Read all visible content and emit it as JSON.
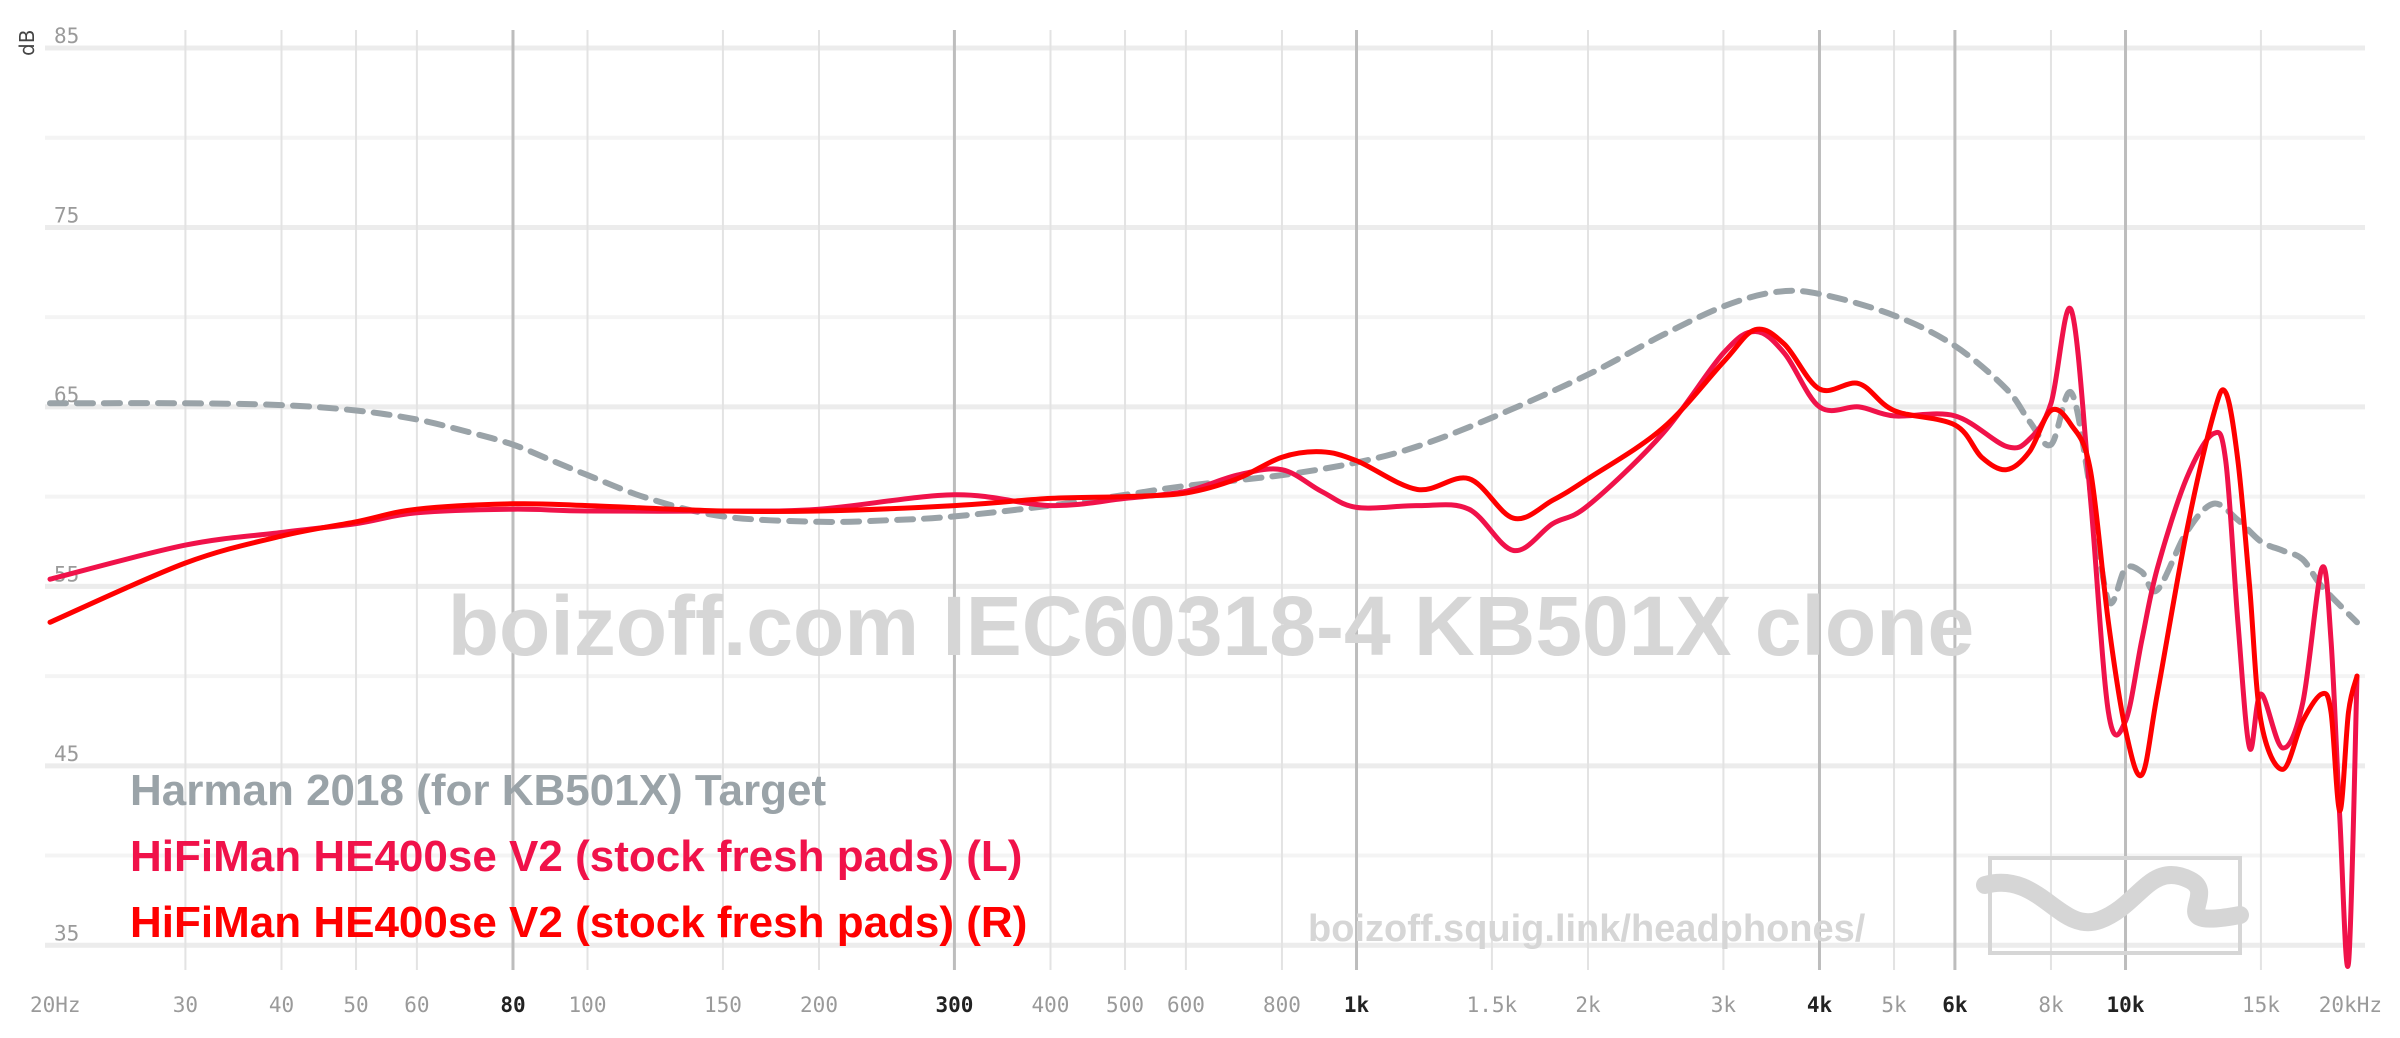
{
  "chart_data": {
    "type": "line",
    "title": "",
    "xlabel": "",
    "ylabel": "dB",
    "x_scale": "log",
    "xlim": [
      20,
      20000
    ],
    "ylim": [
      30,
      85
    ],
    "grid": true,
    "legend_placement": "bottom-left",
    "watermark": "boizoff.com IEC60318-4 KB501X clone",
    "url": "boizoff.squig.link/headphones/",
    "x_ticks": [
      {
        "v": 20,
        "label": "20Hz",
        "bold": false
      },
      {
        "v": 30,
        "label": "30",
        "bold": false
      },
      {
        "v": 40,
        "label": "40",
        "bold": false
      },
      {
        "v": 50,
        "label": "50",
        "bold": false
      },
      {
        "v": 60,
        "label": "60",
        "bold": false
      },
      {
        "v": 80,
        "label": "80",
        "bold": true
      },
      {
        "v": 100,
        "label": "100",
        "bold": false
      },
      {
        "v": 150,
        "label": "150",
        "bold": false
      },
      {
        "v": 200,
        "label": "200",
        "bold": false
      },
      {
        "v": 300,
        "label": "300",
        "bold": true
      },
      {
        "v": 400,
        "label": "400",
        "bold": false
      },
      {
        "v": 500,
        "label": "500",
        "bold": false
      },
      {
        "v": 600,
        "label": "600",
        "bold": false
      },
      {
        "v": 800,
        "label": "800",
        "bold": false
      },
      {
        "v": 1000,
        "label": "1k",
        "bold": true
      },
      {
        "v": 1500,
        "label": "1.5k",
        "bold": false
      },
      {
        "v": 2000,
        "label": "2k",
        "bold": false
      },
      {
        "v": 3000,
        "label": "3k",
        "bold": false
      },
      {
        "v": 4000,
        "label": "4k",
        "bold": true
      },
      {
        "v": 5000,
        "label": "5k",
        "bold": false
      },
      {
        "v": 6000,
        "label": "6k",
        "bold": true
      },
      {
        "v": 8000,
        "label": "8k",
        "bold": false
      },
      {
        "v": 10000,
        "label": "10k",
        "bold": true
      },
      {
        "v": 15000,
        "label": "15k",
        "bold": false
      },
      {
        "v": 20000,
        "label": "20kHz",
        "bold": false
      }
    ],
    "y_ticks": [
      {
        "v": 85,
        "label": "85"
      },
      {
        "v": 75,
        "label": "75"
      },
      {
        "v": 65,
        "label": "65"
      },
      {
        "v": 55,
        "label": "55"
      },
      {
        "v": 45,
        "label": "45"
      },
      {
        "v": 35,
        "label": "35"
      }
    ],
    "series": [
      {
        "name": "Harman 2018 (for KB501X) Target",
        "color": "#9aa3a8",
        "dashed": true,
        "points": [
          [
            20,
            65.2
          ],
          [
            30,
            65.2
          ],
          [
            40,
            65.1
          ],
          [
            50,
            64.8
          ],
          [
            60,
            64.3
          ],
          [
            70,
            63.6
          ],
          [
            80,
            62.9
          ],
          [
            90,
            62.0
          ],
          [
            100,
            61.2
          ],
          [
            120,
            59.9
          ],
          [
            150,
            58.9
          ],
          [
            200,
            58.6
          ],
          [
            250,
            58.7
          ],
          [
            300,
            58.9
          ],
          [
            400,
            59.5
          ],
          [
            500,
            60.1
          ],
          [
            600,
            60.6
          ],
          [
            800,
            61.2
          ],
          [
            1000,
            61.9
          ],
          [
            1200,
            62.8
          ],
          [
            1500,
            64.4
          ],
          [
            2000,
            66.8
          ],
          [
            2500,
            69.0
          ],
          [
            3000,
            70.6
          ],
          [
            3500,
            71.4
          ],
          [
            4000,
            71.3
          ],
          [
            5000,
            70.1
          ],
          [
            6000,
            68.4
          ],
          [
            7000,
            66.0
          ],
          [
            7500,
            64.2
          ],
          [
            8000,
            62.9
          ],
          [
            8500,
            65.8
          ],
          [
            9000,
            60.4
          ],
          [
            9500,
            54.2
          ],
          [
            10000,
            56.0
          ],
          [
            10500,
            55.8
          ],
          [
            11000,
            54.8
          ],
          [
            12000,
            58.0
          ],
          [
            13000,
            59.6
          ],
          [
            14000,
            58.7
          ],
          [
            15000,
            57.5
          ],
          [
            16000,
            57.0
          ],
          [
            17000,
            56.5
          ],
          [
            18000,
            55.0
          ],
          [
            20000,
            53.0
          ]
        ]
      },
      {
        "name": "HiFiMan HE400se V2 (stock fresh pads) (L)",
        "color": "#f0124a",
        "dashed": false,
        "points": [
          [
            20,
            55.4
          ],
          [
            30,
            57.3
          ],
          [
            40,
            58.0
          ],
          [
            50,
            58.5
          ],
          [
            60,
            59.1
          ],
          [
            80,
            59.3
          ],
          [
            100,
            59.2
          ],
          [
            150,
            59.2
          ],
          [
            200,
            59.3
          ],
          [
            300,
            60.1
          ],
          [
            400,
            59.5
          ],
          [
            500,
            59.9
          ],
          [
            600,
            60.3
          ],
          [
            700,
            61.2
          ],
          [
            800,
            61.5
          ],
          [
            900,
            60.3
          ],
          [
            1000,
            59.4
          ],
          [
            1200,
            59.5
          ],
          [
            1400,
            59.3
          ],
          [
            1600,
            57.0
          ],
          [
            1800,
            58.5
          ],
          [
            2000,
            59.5
          ],
          [
            2500,
            63.5
          ],
          [
            3000,
            68.0
          ],
          [
            3300,
            69.2
          ],
          [
            3600,
            68.0
          ],
          [
            4000,
            65.0
          ],
          [
            4500,
            65.0
          ],
          [
            5000,
            64.5
          ],
          [
            6000,
            64.5
          ],
          [
            7000,
            62.8
          ],
          [
            7500,
            63.2
          ],
          [
            8000,
            65.2
          ],
          [
            8500,
            70.4
          ],
          [
            9000,
            60.0
          ],
          [
            9500,
            48.0
          ],
          [
            10000,
            47.5
          ],
          [
            10500,
            52.0
          ],
          [
            11000,
            56.0
          ],
          [
            12000,
            61.0
          ],
          [
            13000,
            63.5
          ],
          [
            13500,
            62.0
          ],
          [
            14000,
            53.0
          ],
          [
            14500,
            46.0
          ],
          [
            15000,
            49.0
          ],
          [
            16000,
            46.0
          ],
          [
            17000,
            48.5
          ],
          [
            18000,
            56.0
          ],
          [
            18500,
            52.0
          ],
          [
            19000,
            42.0
          ],
          [
            19500,
            34.0
          ],
          [
            20000,
            50.0
          ]
        ]
      },
      {
        "name": "HiFiMan HE400se V2 (stock fresh pads) (R)",
        "color": "#ff0000",
        "dashed": false,
        "points": [
          [
            20,
            53.0
          ],
          [
            30,
            56.3
          ],
          [
            40,
            57.8
          ],
          [
            50,
            58.6
          ],
          [
            60,
            59.3
          ],
          [
            80,
            59.6
          ],
          [
            100,
            59.5
          ],
          [
            150,
            59.2
          ],
          [
            200,
            59.2
          ],
          [
            300,
            59.5
          ],
          [
            400,
            59.9
          ],
          [
            500,
            60.0
          ],
          [
            600,
            60.2
          ],
          [
            700,
            61.0
          ],
          [
            800,
            62.2
          ],
          [
            900,
            62.5
          ],
          [
            1000,
            62.0
          ],
          [
            1200,
            60.4
          ],
          [
            1400,
            61.0
          ],
          [
            1600,
            58.8
          ],
          [
            1800,
            59.8
          ],
          [
            2000,
            61.0
          ],
          [
            2500,
            63.8
          ],
          [
            3000,
            67.5
          ],
          [
            3300,
            69.3
          ],
          [
            3600,
            68.5
          ],
          [
            4000,
            66.0
          ],
          [
            4500,
            66.3
          ],
          [
            5000,
            64.8
          ],
          [
            6000,
            64.0
          ],
          [
            6500,
            62.2
          ],
          [
            7000,
            61.5
          ],
          [
            7500,
            62.5
          ],
          [
            8000,
            64.8
          ],
          [
            8500,
            64.0
          ],
          [
            9000,
            61.5
          ],
          [
            9500,
            53.0
          ],
          [
            10000,
            47.0
          ],
          [
            10500,
            44.5
          ],
          [
            11000,
            49.0
          ],
          [
            12000,
            58.0
          ],
          [
            13000,
            64.5
          ],
          [
            13500,
            65.8
          ],
          [
            14000,
            62.0
          ],
          [
            14500,
            55.0
          ],
          [
            15000,
            47.5
          ],
          [
            16000,
            44.8
          ],
          [
            17000,
            47.5
          ],
          [
            18000,
            49.0
          ],
          [
            18500,
            48.0
          ],
          [
            19000,
            42.5
          ],
          [
            19500,
            48.0
          ],
          [
            20000,
            50.0
          ]
        ]
      }
    ]
  }
}
